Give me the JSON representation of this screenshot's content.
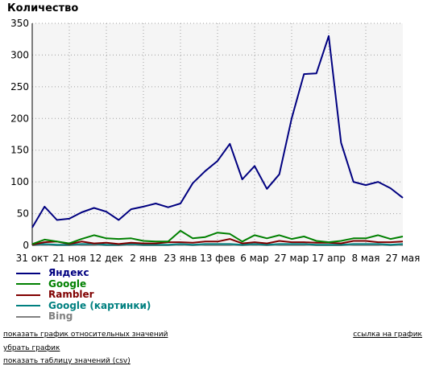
{
  "chart_data": {
    "type": "line",
    "title": "Количество",
    "xlabel": "",
    "ylabel": "",
    "ylim": [
      0,
      350
    ],
    "yticks": [
      0,
      50,
      100,
      150,
      200,
      250,
      300,
      350
    ],
    "grid": true,
    "legend_placement": "bottom-left",
    "x_tick_labels": [
      "31 окт",
      "21 ноя",
      "12 дек",
      "2 янв",
      "23 янв",
      "13 фев",
      "6 мар",
      "27 мар",
      "17 апр",
      "8 мая",
      "27 мая"
    ],
    "series": [
      {
        "name": "Яндекс",
        "color": "#000080",
        "values": [
          28,
          61,
          40,
          42,
          52,
          59,
          53,
          40,
          57,
          61,
          66,
          60,
          66,
          98,
          117,
          133,
          160,
          104,
          125,
          89,
          112,
          200,
          270,
          271,
          330,
          162,
          100,
          95,
          100,
          90,
          75
        ]
      },
      {
        "name": "Google",
        "color": "#008000",
        "values": [
          2,
          9,
          6,
          3,
          10,
          16,
          11,
          10,
          11,
          7,
          6,
          6,
          23,
          11,
          13,
          20,
          18,
          6,
          16,
          11,
          16,
          10,
          14,
          7,
          5,
          7,
          11,
          11,
          16,
          10,
          14
        ]
      },
      {
        "name": "Rambler",
        "color": "#800000",
        "values": [
          1,
          5,
          6,
          2,
          6,
          3,
          4,
          2,
          4,
          3,
          3,
          5,
          5,
          4,
          6,
          6,
          10,
          3,
          5,
          3,
          7,
          5,
          5,
          4,
          4,
          3,
          7,
          7,
          5,
          5,
          6
        ]
      },
      {
        "name": "Google (картинки)",
        "color": "#008080",
        "values": [
          1,
          2,
          1,
          1,
          2,
          2,
          1,
          1,
          2,
          1,
          1,
          1,
          2,
          1,
          2,
          2,
          2,
          1,
          2,
          1,
          2,
          2,
          2,
          1,
          1,
          1,
          2,
          2,
          2,
          1,
          2
        ]
      },
      {
        "name": "Bing",
        "color": "#808080",
        "values": [
          0,
          1,
          0,
          0,
          1,
          1,
          0,
          0,
          1,
          0,
          0,
          0,
          1,
          0,
          1,
          1,
          1,
          0,
          1,
          0,
          1,
          1,
          1,
          0,
          0,
          0,
          1,
          1,
          1,
          0,
          1
        ]
      }
    ]
  },
  "links": {
    "relative": "показать график относительных значений",
    "chart_link": "ссылка на график",
    "hide_chart": "убрать график",
    "show_table_prefix": "показать таблицу значений (",
    "show_table_csv": "csv",
    "show_table_suffix": ")"
  }
}
